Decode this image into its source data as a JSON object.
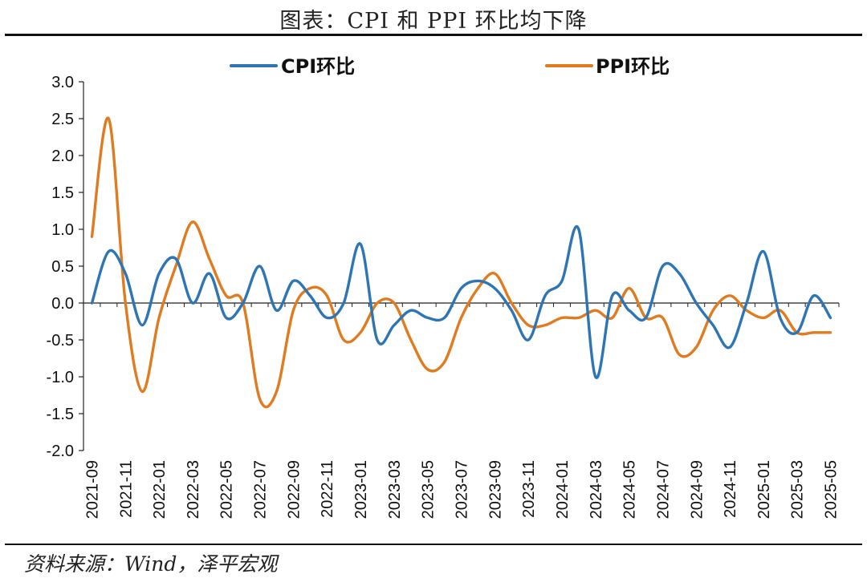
{
  "title": "图表：CPI 和 PPI 环比均下降",
  "source": "资料来源：Wind，泽平宏观",
  "chart_data": {
    "type": "line",
    "title": "图表：CPI 和 PPI 环比均下降",
    "xlabel": "",
    "ylabel": "",
    "ylim": [
      -2.0,
      3.0
    ],
    "yticks": [
      "3.0",
      "2.5",
      "2.0",
      "1.5",
      "1.0",
      "0.5",
      "0.0",
      "-0.5",
      "-1.0",
      "-1.5",
      "-2.0"
    ],
    "grid": false,
    "legend_position": "top",
    "x": [
      "2021-09",
      "2021-10",
      "2021-11",
      "2021-12",
      "2022-01",
      "2022-02",
      "2022-03",
      "2022-04",
      "2022-05",
      "2022-06",
      "2022-07",
      "2022-08",
      "2022-09",
      "2022-10",
      "2022-11",
      "2022-12",
      "2023-01",
      "2023-02",
      "2023-03",
      "2023-04",
      "2023-05",
      "2023-06",
      "2023-07",
      "2023-08",
      "2023-09",
      "2023-10",
      "2023-11",
      "2023-12",
      "2024-01",
      "2024-02",
      "2024-03",
      "2024-04",
      "2024-05",
      "2024-06",
      "2024-07",
      "2024-08",
      "2024-09",
      "2024-10",
      "2024-11",
      "2024-12",
      "2025-01",
      "2025-02",
      "2025-03",
      "2025-04",
      "2025-05"
    ],
    "xtick_labels": [
      "2021-09",
      "2021-11",
      "2022-01",
      "2022-03",
      "2022-05",
      "2022-07",
      "2022-09",
      "2022-11",
      "2023-01",
      "2023-03",
      "2023-05",
      "2023-07",
      "2023-09",
      "2023-11",
      "2024-01",
      "2024-03",
      "2024-05",
      "2024-07",
      "2024-09",
      "2024-11",
      "2025-01",
      "2025-03",
      "2025-05"
    ],
    "series": [
      {
        "name": "CPI环比",
        "color": "#2E75B6",
        "values": [
          0.0,
          0.7,
          0.4,
          -0.3,
          0.4,
          0.6,
          0.0,
          0.4,
          -0.2,
          0.0,
          0.5,
          -0.1,
          0.3,
          0.1,
          -0.2,
          0.0,
          0.8,
          -0.5,
          -0.3,
          -0.1,
          -0.2,
          -0.2,
          0.2,
          0.3,
          0.2,
          -0.1,
          -0.5,
          0.1,
          0.3,
          1.0,
          -1.0,
          0.1,
          -0.1,
          -0.2,
          0.5,
          0.4,
          0.0,
          -0.3,
          -0.6,
          0.0,
          0.7,
          -0.2,
          -0.4,
          0.1,
          -0.2
        ]
      },
      {
        "name": "PPI环比",
        "color": "#E07B1F",
        "values": [
          0.9,
          2.5,
          0.0,
          -1.2,
          -0.2,
          0.5,
          1.1,
          0.6,
          0.1,
          0.0,
          -1.3,
          -1.2,
          -0.1,
          0.2,
          0.1,
          -0.5,
          -0.4,
          0.0,
          0.0,
          -0.5,
          -0.9,
          -0.8,
          -0.2,
          0.2,
          0.4,
          0.0,
          -0.3,
          -0.3,
          -0.2,
          -0.2,
          -0.1,
          -0.2,
          0.2,
          -0.2,
          -0.2,
          -0.7,
          -0.6,
          -0.1,
          0.1,
          -0.1,
          -0.2,
          -0.1,
          -0.4,
          -0.4,
          -0.4
        ]
      }
    ]
  }
}
